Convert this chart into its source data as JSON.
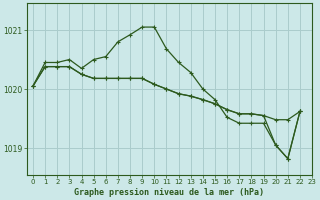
{
  "title": "Graphe pression niveau de la mer (hPa)",
  "bg_color": "#cce8e8",
  "grid_color": "#aacccc",
  "line_color": "#2d5a1e",
  "xlim": [
    -0.5,
    23
  ],
  "ylim": [
    1018.55,
    1021.45
  ],
  "yticks": [
    1019,
    1020,
    1021
  ],
  "xticks": [
    0,
    1,
    2,
    3,
    4,
    5,
    6,
    7,
    8,
    9,
    10,
    11,
    12,
    13,
    14,
    15,
    16,
    17,
    18,
    19,
    20,
    21,
    22,
    23
  ],
  "s1": [
    1020.05,
    1020.45,
    1020.45,
    1020.5,
    1020.35,
    1020.5,
    1020.55,
    1020.8,
    1020.92,
    1021.05,
    1021.05,
    1020.68,
    1020.45,
    1020.28,
    1020.0,
    1019.82,
    1019.52,
    1019.42,
    1019.42,
    1019.42,
    1019.05,
    1018.82,
    1019.62
  ],
  "s2": [
    1020.05,
    1020.38,
    1020.38,
    1020.38,
    1020.25,
    1020.18,
    1020.18,
    1020.18,
    1020.18,
    1020.18,
    1020.08,
    1020.0,
    1019.92,
    1019.88,
    1019.82,
    1019.75,
    1019.65,
    1019.58,
    1019.58,
    1019.55,
    1019.48,
    1019.48,
    1019.62
  ],
  "s3": [
    1020.05,
    1020.38,
    1020.38,
    1020.38,
    1020.25,
    1020.18,
    1020.18,
    1020.18,
    1020.18,
    1020.18,
    1020.08,
    1020.0,
    1019.92,
    1019.88,
    1019.82,
    1019.75,
    1019.65,
    1019.58,
    1019.58,
    1019.55,
    1019.05,
    1018.82,
    1019.62
  ],
  "figsize": [
    3.2,
    2.0
  ],
  "dpi": 100
}
